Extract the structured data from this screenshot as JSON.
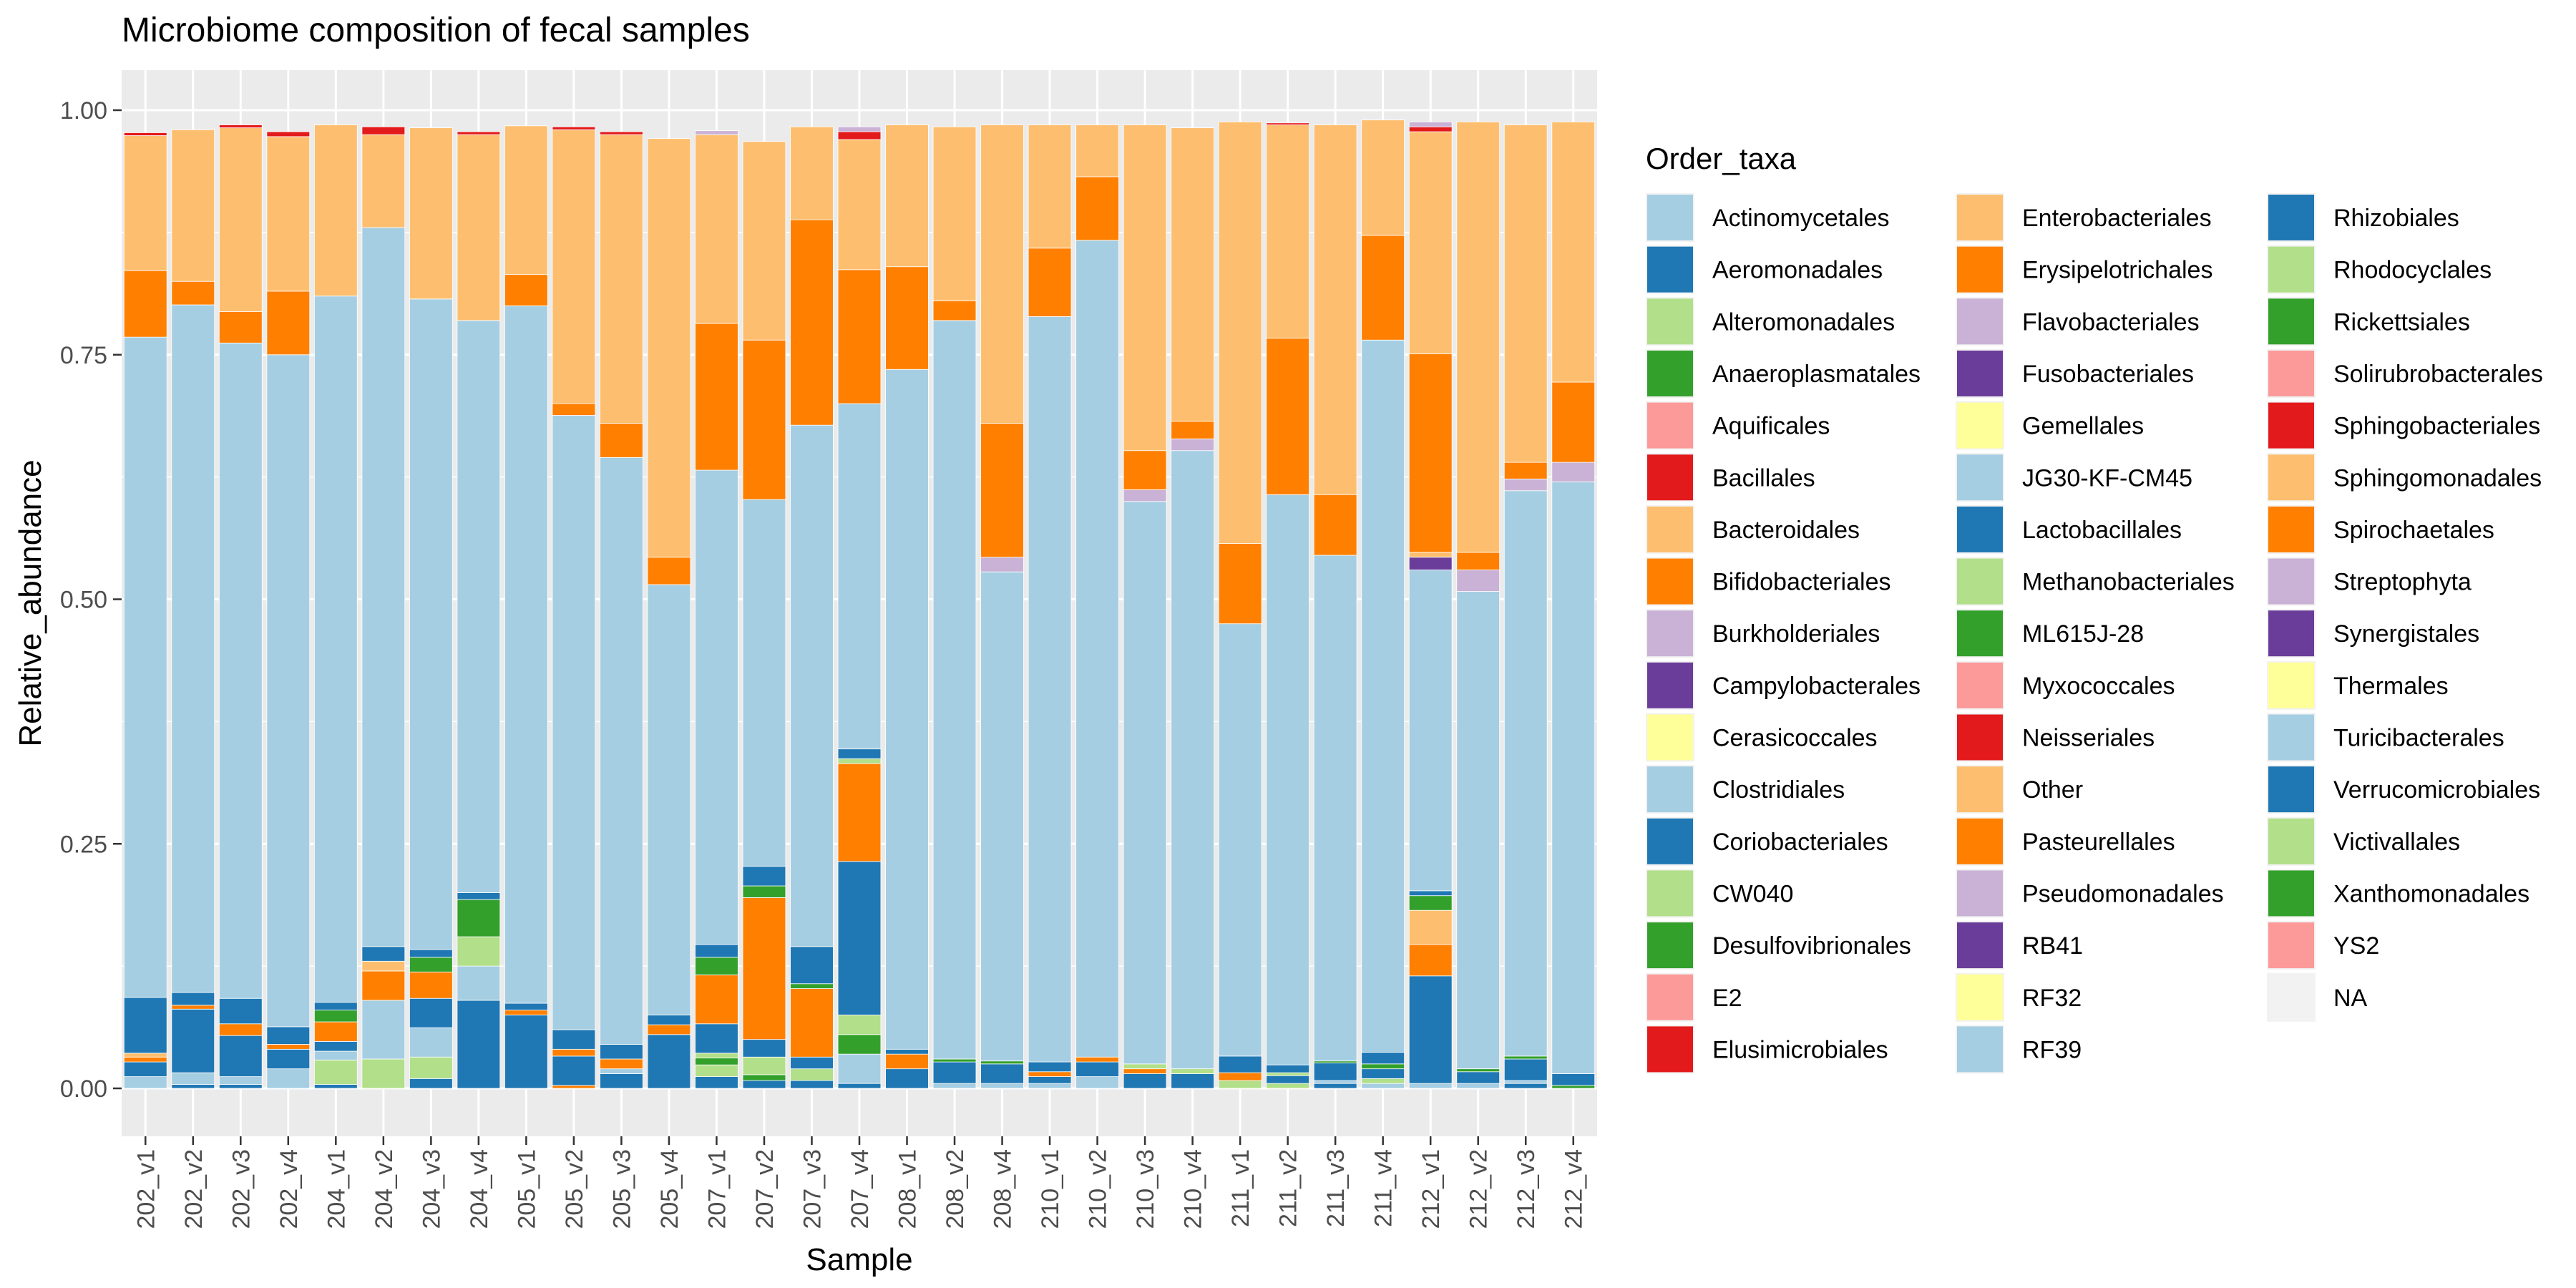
{
  "chart_data": {
    "type": "bar",
    "stacked": true,
    "title": "Microbiome composition of fecal samples",
    "xlabel": "Sample",
    "ylabel": "Relative_abundance",
    "ylim": [
      0,
      1
    ],
    "y_ticks": [
      "0.00",
      "0.25",
      "0.50",
      "0.75",
      "1.00"
    ],
    "grid": true,
    "legend_position": "right",
    "legend_title": "Order_taxa",
    "categories": [
      "202_v1",
      "202_v2",
      "202_v3",
      "202_v4",
      "204_v1",
      "204_v2",
      "204_v3",
      "204_v4",
      "205_v1",
      "205_v2",
      "205_v3",
      "205_v4",
      "207_v1",
      "207_v2",
      "207_v3",
      "207_v4",
      "208_v1",
      "208_v2",
      "208_v4",
      "210_v1",
      "210_v2",
      "210_v3",
      "210_v4",
      "211_v1",
      "211_v2",
      "211_v3",
      "211_v4",
      "212_v1",
      "212_v2",
      "212_v3",
      "212_v4"
    ],
    "legend": [
      {
        "name": "Actinomycetales",
        "color": "#A6CEE3"
      },
      {
        "name": "Aeromonadales",
        "color": "#1F78B4"
      },
      {
        "name": "Alteromonadales",
        "color": "#B2DF8A"
      },
      {
        "name": "Anaeroplasmatales",
        "color": "#33A02C"
      },
      {
        "name": "Aquificales",
        "color": "#FB9A99"
      },
      {
        "name": "Bacillales",
        "color": "#E31A1C"
      },
      {
        "name": "Bacteroidales",
        "color": "#FDBF6F"
      },
      {
        "name": "Bifidobacteriales",
        "color": "#FF7F00"
      },
      {
        "name": "Burkholderiales",
        "color": "#CAB2D6"
      },
      {
        "name": "Campylobacterales",
        "color": "#6A3D9A"
      },
      {
        "name": "Cerasicoccales",
        "color": "#FFFF99"
      },
      {
        "name": "Clostridiales",
        "color": "#A6CEE3"
      },
      {
        "name": "Coriobacteriales",
        "color": "#1F78B4"
      },
      {
        "name": "CW040",
        "color": "#B2DF8A"
      },
      {
        "name": "Desulfovibrionales",
        "color": "#33A02C"
      },
      {
        "name": "E2",
        "color": "#FB9A99"
      },
      {
        "name": "Elusimicrobiales",
        "color": "#E31A1C"
      },
      {
        "name": "Enterobacteriales",
        "color": "#FDBF6F"
      },
      {
        "name": "Erysipelotrichales",
        "color": "#FF7F00"
      },
      {
        "name": "Flavobacteriales",
        "color": "#CAB2D6"
      },
      {
        "name": "Fusobacteriales",
        "color": "#6A3D9A"
      },
      {
        "name": "Gemellales",
        "color": "#FFFF99"
      },
      {
        "name": "JG30-KF-CM45",
        "color": "#A6CEE3"
      },
      {
        "name": "Lactobacillales",
        "color": "#1F78B4"
      },
      {
        "name": "Methanobacteriales",
        "color": "#B2DF8A"
      },
      {
        "name": "ML615J-28",
        "color": "#33A02C"
      },
      {
        "name": "Myxococcales",
        "color": "#FB9A99"
      },
      {
        "name": "Neisseriales",
        "color": "#E31A1C"
      },
      {
        "name": "Other",
        "color": "#FDBF6F"
      },
      {
        "name": "Pasteurellales",
        "color": "#FF7F00"
      },
      {
        "name": "Pseudomonadales",
        "color": "#CAB2D6"
      },
      {
        "name": "RB41",
        "color": "#6A3D9A"
      },
      {
        "name": "RF32",
        "color": "#FFFF99"
      },
      {
        "name": "RF39",
        "color": "#A6CEE3"
      },
      {
        "name": "Rhizobiales",
        "color": "#1F78B4"
      },
      {
        "name": "Rhodocyclales",
        "color": "#B2DF8A"
      },
      {
        "name": "Rickettsiales",
        "color": "#33A02C"
      },
      {
        "name": "Solirubrobacterales",
        "color": "#FB9A99"
      },
      {
        "name": "Sphingobacteriales",
        "color": "#E31A1C"
      },
      {
        "name": "Sphingomonadales",
        "color": "#FDBF6F"
      },
      {
        "name": "Spirochaetales",
        "color": "#FF7F00"
      },
      {
        "name": "Streptophyta",
        "color": "#CAB2D6"
      },
      {
        "name": "Synergistales",
        "color": "#6A3D9A"
      },
      {
        "name": "Thermales",
        "color": "#FFFF99"
      },
      {
        "name": "Turicibacterales",
        "color": "#A6CEE3"
      },
      {
        "name": "Verrucomicrobiales",
        "color": "#1F78B4"
      },
      {
        "name": "Victivallales",
        "color": "#B2DF8A"
      },
      {
        "name": "Xanthomonadales",
        "color": "#33A02C"
      },
      {
        "name": "YS2",
        "color": "#FB9A99"
      },
      {
        "name": "NA",
        "color": "#F2F2F2"
      }
    ],
    "bars": [
      [
        [
          "#A6CEE3",
          0.012
        ],
        [
          "#1F78B4",
          0.015
        ],
        [
          "#FF7F00",
          0.005
        ],
        [
          "#FDBF6F",
          0.004
        ],
        [
          "#1F78B4",
          0.057
        ],
        [
          "#A6CEE3",
          0.675
        ],
        [
          "#FF7F00",
          0.068
        ],
        [
          "#FDBF6F",
          0.138
        ],
        [
          "#E31A1C",
          0.003
        ]
      ],
      [
        [
          "#1F78B4",
          0.004
        ],
        [
          "#A6CEE3",
          0.012
        ],
        [
          "#1F78B4",
          0.065
        ],
        [
          "#FF7F00",
          0.004
        ],
        [
          "#1F78B4",
          0.013
        ],
        [
          "#A6CEE3",
          0.703
        ],
        [
          "#FF7F00",
          0.024
        ],
        [
          "#FDBF6F",
          0.155
        ]
      ],
      [
        [
          "#1F78B4",
          0.004
        ],
        [
          "#A6CEE3",
          0.008
        ],
        [
          "#1F78B4",
          0.042
        ],
        [
          "#FF7F00",
          0.012
        ],
        [
          "#1F78B4",
          0.026
        ],
        [
          "#A6CEE3",
          0.67
        ],
        [
          "#FF7F00",
          0.032
        ],
        [
          "#FDBF6F",
          0.188
        ],
        [
          "#E31A1C",
          0.003
        ]
      ],
      [
        [
          "#A6CEE3",
          0.02
        ],
        [
          "#1F78B4",
          0.02
        ],
        [
          "#FF7F00",
          0.005
        ],
        [
          "#1F78B4",
          0.018
        ],
        [
          "#A6CEE3",
          0.687
        ],
        [
          "#FF7F00",
          0.065
        ],
        [
          "#FDBF6F",
          0.158
        ],
        [
          "#E31A1C",
          0.005
        ]
      ],
      [
        [
          "#1F78B4",
          0.004
        ],
        [
          "#B2DF8A",
          0.025
        ],
        [
          "#A6CEE3",
          0.009
        ],
        [
          "#1F78B4",
          0.01
        ],
        [
          "#FF7F00",
          0.02
        ],
        [
          "#33A02C",
          0.012
        ],
        [
          "#1F78B4",
          0.008
        ],
        [
          "#A6CEE3",
          0.722
        ],
        [
          "#FDBF6F",
          0.175
        ]
      ],
      [
        [
          "#B2DF8A",
          0.03
        ],
        [
          "#A6CEE3",
          0.06
        ],
        [
          "#FF7F00",
          0.03
        ],
        [
          "#FDBF6F",
          0.01
        ],
        [
          "#1F78B4",
          0.015
        ],
        [
          "#A6CEE3",
          0.735
        ],
        [
          "#FDBF6F",
          0.095
        ],
        [
          "#E31A1C",
          0.008
        ]
      ],
      [
        [
          "#1F78B4",
          0.01
        ],
        [
          "#B2DF8A",
          0.022
        ],
        [
          "#A6CEE3",
          0.03
        ],
        [
          "#1F78B4",
          0.03
        ],
        [
          "#FF7F00",
          0.027
        ],
        [
          "#33A02C",
          0.015
        ],
        [
          "#1F78B4",
          0.008
        ],
        [
          "#A6CEE3",
          0.665
        ],
        [
          "#FDBF6F",
          0.175
        ]
      ],
      [
        [
          "#1F78B4",
          0.09
        ],
        [
          "#A6CEE3",
          0.035
        ],
        [
          "#B2DF8A",
          0.03
        ],
        [
          "#33A02C",
          0.038
        ],
        [
          "#1F78B4",
          0.007
        ],
        [
          "#A6CEE3",
          0.585
        ],
        [
          "#FDBF6F",
          0.19
        ],
        [
          "#E31A1C",
          0.003
        ]
      ],
      [
        [
          "#1F78B4",
          0.075
        ],
        [
          "#FF7F00",
          0.005
        ],
        [
          "#1F78B4",
          0.007
        ],
        [
          "#A6CEE3",
          0.713
        ],
        [
          "#FF7F00",
          0.032
        ],
        [
          "#FDBF6F",
          0.152
        ]
      ],
      [
        [
          "#FF7F00",
          0.003
        ],
        [
          "#1F78B4",
          0.03
        ],
        [
          "#FF7F00",
          0.007
        ],
        [
          "#1F78B4",
          0.02
        ],
        [
          "#A6CEE3",
          0.628
        ],
        [
          "#FF7F00",
          0.012
        ],
        [
          "#FDBF6F",
          0.28
        ],
        [
          "#E31A1C",
          0.003
        ]
      ],
      [
        [
          "#1F78B4",
          0.015
        ],
        [
          "#A6CEE3",
          0.005
        ],
        [
          "#FF7F00",
          0.01
        ],
        [
          "#1F78B4",
          0.015
        ],
        [
          "#A6CEE3",
          0.6
        ],
        [
          "#FF7F00",
          0.035
        ],
        [
          "#FDBF6F",
          0.295
        ],
        [
          "#E31A1C",
          0.003
        ]
      ],
      [
        [
          "#1F78B4",
          0.055
        ],
        [
          "#FF7F00",
          0.01
        ],
        [
          "#1F78B4",
          0.01
        ],
        [
          "#A6CEE3",
          0.44
        ],
        [
          "#FF7F00",
          0.028
        ],
        [
          "#FDBF6F",
          0.428
        ]
      ],
      [
        [
          "#1F78B4",
          0.012
        ],
        [
          "#B2DF8A",
          0.012
        ],
        [
          "#33A02C",
          0.007
        ],
        [
          "#B2DF8A",
          0.005
        ],
        [
          "#1F78B4",
          0.03
        ],
        [
          "#FF7F00",
          0.05
        ],
        [
          "#33A02C",
          0.018
        ],
        [
          "#1F78B4",
          0.013
        ],
        [
          "#A6CEE3",
          0.485
        ],
        [
          "#FF7F00",
          0.15
        ],
        [
          "#FDBF6F",
          0.193
        ],
        [
          "#CAB2D6",
          0.004
        ]
      ],
      [
        [
          "#1F78B4",
          0.008
        ],
        [
          "#33A02C",
          0.006
        ],
        [
          "#B2DF8A",
          0.018
        ],
        [
          "#1F78B4",
          0.018
        ],
        [
          "#FF7F00",
          0.145
        ],
        [
          "#33A02C",
          0.012
        ],
        [
          "#1F78B4",
          0.02
        ],
        [
          "#A6CEE3",
          0.375
        ],
        [
          "#FF7F00",
          0.163
        ],
        [
          "#FDBF6F",
          0.203
        ]
      ],
      [
        [
          "#1F78B4",
          0.008
        ],
        [
          "#B2DF8A",
          0.012
        ],
        [
          "#1F78B4",
          0.012
        ],
        [
          "#FF7F00",
          0.07
        ],
        [
          "#33A02C",
          0.005
        ],
        [
          "#1F78B4",
          0.038
        ],
        [
          "#A6CEE3",
          0.533
        ],
        [
          "#FF7F00",
          0.21
        ],
        [
          "#FDBF6F",
          0.095
        ]
      ],
      [
        [
          "#1F78B4",
          0.005
        ],
        [
          "#A6CEE3",
          0.03
        ],
        [
          "#33A02C",
          0.02
        ],
        [
          "#B2DF8A",
          0.02
        ],
        [
          "#1F78B4",
          0.157
        ],
        [
          "#FF7F00",
          0.1
        ],
        [
          "#B2DF8A",
          0.005
        ],
        [
          "#1F78B4",
          0.01
        ],
        [
          "#A6CEE3",
          0.353
        ],
        [
          "#FF7F00",
          0.137
        ],
        [
          "#FDBF6F",
          0.133
        ],
        [
          "#E31A1C",
          0.008
        ],
        [
          "#CAB2D6",
          0.005
        ]
      ],
      [
        [
          "#1F78B4",
          0.02
        ],
        [
          "#FF7F00",
          0.015
        ],
        [
          "#1F78B4",
          0.005
        ],
        [
          "#A6CEE3",
          0.695
        ],
        [
          "#FF7F00",
          0.105
        ],
        [
          "#FDBF6F",
          0.145
        ]
      ],
      [
        [
          "#A6CEE3",
          0.005
        ],
        [
          "#1F78B4",
          0.022
        ],
        [
          "#33A02C",
          0.003
        ],
        [
          "#A6CEE3",
          0.755
        ],
        [
          "#FF7F00",
          0.02
        ],
        [
          "#FDBF6F",
          0.178
        ]
      ],
      [
        [
          "#A6CEE3",
          0.005
        ],
        [
          "#1F78B4",
          0.02
        ],
        [
          "#33A02C",
          0.003
        ],
        [
          "#A6CEE3",
          0.5
        ],
        [
          "#CAB2D6",
          0.015
        ],
        [
          "#FF7F00",
          0.137
        ],
        [
          "#FDBF6F",
          0.305
        ]
      ],
      [
        [
          "#A6CEE3",
          0.005
        ],
        [
          "#1F78B4",
          0.007
        ],
        [
          "#FF7F00",
          0.005
        ],
        [
          "#1F78B4",
          0.01
        ],
        [
          "#A6CEE3",
          0.762
        ],
        [
          "#FF7F00",
          0.07
        ],
        [
          "#FDBF6F",
          0.126
        ]
      ],
      [
        [
          "#A6CEE3",
          0.012
        ],
        [
          "#1F78B4",
          0.015
        ],
        [
          "#FF7F00",
          0.005
        ],
        [
          "#A6CEE3",
          0.835
        ],
        [
          "#FF7F00",
          0.065
        ],
        [
          "#FDBF6F",
          0.053
        ]
      ],
      [
        [
          "#1F78B4",
          0.015
        ],
        [
          "#FF7F00",
          0.005
        ],
        [
          "#B2DF8A",
          0.005
        ],
        [
          "#A6CEE3",
          0.575
        ],
        [
          "#CAB2D6",
          0.012
        ],
        [
          "#FF7F00",
          0.04
        ],
        [
          "#FDBF6F",
          0.333
        ]
      ],
      [
        [
          "#1F78B4",
          0.015
        ],
        [
          "#B2DF8A",
          0.005
        ],
        [
          "#A6CEE3",
          0.632
        ],
        [
          "#CAB2D6",
          0.012
        ],
        [
          "#FF7F00",
          0.018
        ],
        [
          "#FDBF6F",
          0.3
        ]
      ],
      [
        [
          "#B2DF8A",
          0.008
        ],
        [
          "#FF7F00",
          0.008
        ],
        [
          "#1F78B4",
          0.017
        ],
        [
          "#A6CEE3",
          0.442
        ],
        [
          "#FF7F00",
          0.082
        ],
        [
          "#FDBF6F",
          0.431
        ]
      ],
      [
        [
          "#B2DF8A",
          0.005
        ],
        [
          "#1F78B4",
          0.008
        ],
        [
          "#B2DF8A",
          0.003
        ],
        [
          "#1F78B4",
          0.008
        ],
        [
          "#A6CEE3",
          0.583
        ],
        [
          "#FF7F00",
          0.16
        ],
        [
          "#FDBF6F",
          0.218
        ],
        [
          "#E31A1C",
          0.002
        ]
      ],
      [
        [
          "#1F78B4",
          0.005
        ],
        [
          "#A6CEE3",
          0.003
        ],
        [
          "#1F78B4",
          0.018
        ],
        [
          "#33A02C",
          0.002
        ],
        [
          "#A6CEE3",
          0.517
        ],
        [
          "#FF7F00",
          0.062
        ],
        [
          "#FDBF6F",
          0.378
        ]
      ],
      [
        [
          "#A6CEE3",
          0.005
        ],
        [
          "#B2DF8A",
          0.005
        ],
        [
          "#1F78B4",
          0.01
        ],
        [
          "#33A02C",
          0.005
        ],
        [
          "#1F78B4",
          0.012
        ],
        [
          "#A6CEE3",
          0.728
        ],
        [
          "#FF7F00",
          0.107
        ],
        [
          "#FDBF6F",
          0.118
        ]
      ],
      [
        [
          "#A6CEE3",
          0.005
        ],
        [
          "#1F78B4",
          0.11
        ],
        [
          "#FF7F00",
          0.032
        ],
        [
          "#FDBF6F",
          0.035
        ],
        [
          "#33A02C",
          0.015
        ],
        [
          "#1F78B4",
          0.005
        ],
        [
          "#A6CEE3",
          0.328
        ],
        [
          "#6A3D9A",
          0.013
        ],
        [
          "#FDBF6F",
          0.005
        ],
        [
          "#FF7F00",
          0.203
        ],
        [
          "#FDBF6F",
          0.227
        ],
        [
          "#E31A1C",
          0.005
        ],
        [
          "#CAB2D6",
          0.005
        ]
      ],
      [
        [
          "#A6CEE3",
          0.005
        ],
        [
          "#1F78B4",
          0.012
        ],
        [
          "#33A02C",
          0.003
        ],
        [
          "#A6CEE3",
          0.488
        ],
        [
          "#CAB2D6",
          0.022
        ],
        [
          "#FF7F00",
          0.018
        ],
        [
          "#FDBF6F",
          0.44
        ]
      ],
      [
        [
          "#1F78B4",
          0.005
        ],
        [
          "#A6CEE3",
          0.003
        ],
        [
          "#1F78B4",
          0.022
        ],
        [
          "#33A02C",
          0.003
        ],
        [
          "#A6CEE3",
          0.578
        ],
        [
          "#CAB2D6",
          0.012
        ],
        [
          "#FF7F00",
          0.017
        ],
        [
          "#FDBF6F",
          0.345
        ]
      ],
      [
        [
          "#33A02C",
          0.003
        ],
        [
          "#1F78B4",
          0.012
        ],
        [
          "#A6CEE3",
          0.605
        ],
        [
          "#CAB2D6",
          0.02
        ],
        [
          "#FF7F00",
          0.082
        ],
        [
          "#FDBF6F",
          0.266
        ]
      ]
    ]
  }
}
